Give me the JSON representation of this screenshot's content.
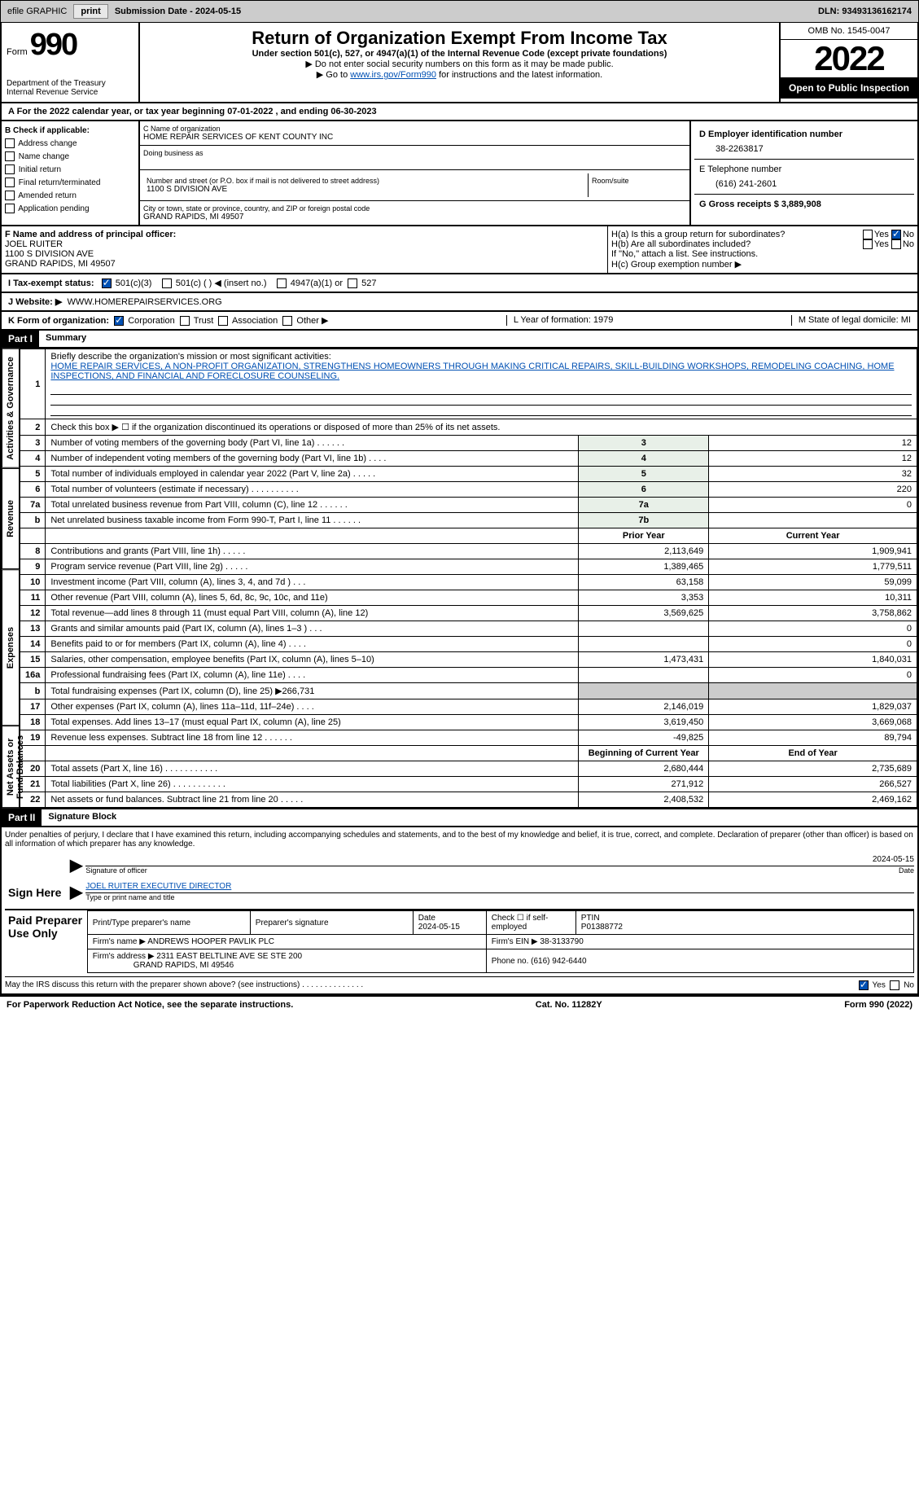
{
  "topbar": {
    "efile_label": "efile GRAPHIC",
    "print_btn": "print",
    "sub_date_label": "Submission Date - 2024-05-15",
    "dln_label": "DLN: 93493136162174"
  },
  "header": {
    "form_word": "Form",
    "form_number": "990",
    "dept": "Department of the Treasury\nInternal Revenue Service",
    "title": "Return of Organization Exempt From Income Tax",
    "subtitle": "Under section 501(c), 527, or 4947(a)(1) of the Internal Revenue Code (except private foundations)",
    "note1": "▶ Do not enter social security numbers on this form as it may be made public.",
    "note2_pre": "▶ Go to ",
    "note2_link": "www.irs.gov/Form990",
    "note2_post": " for instructions and the latest information.",
    "omb": "OMB No. 1545-0047",
    "year": "2022",
    "inspect": "Open to Public Inspection"
  },
  "row_a": "A For the 2022 calendar year, or tax year beginning 07-01-2022    , and ending 06-30-2023",
  "section_b": {
    "b_label": "B Check if applicable:",
    "b_items": [
      "Address change",
      "Name change",
      "Initial return",
      "Final return/terminated",
      "Amended return",
      "Application pending"
    ],
    "c_name_label": "C Name of organization",
    "c_name": "HOME REPAIR SERVICES OF KENT COUNTY INC",
    "c_dba_label": "Doing business as",
    "c_addr_label": "Number and street (or P.O. box if mail is not delivered to street address)",
    "c_addr": "1100 S DIVISION AVE",
    "c_room_label": "Room/suite",
    "c_city_label": "City or town, state or province, country, and ZIP or foreign postal code",
    "c_city": "GRAND RAPIDS, MI  49507",
    "d_ein_label": "D Employer identification number",
    "d_ein": "38-2263817",
    "e_tel_label": "E Telephone number",
    "e_tel": "(616) 241-2601",
    "g_gross_label": "G Gross receipts $ 3,889,908"
  },
  "section_f": {
    "f_label": "F Name and address of principal officer:",
    "f_name": "JOEL RUITER",
    "f_addr1": "1100 S DIVISION AVE",
    "f_addr2": "GRAND RAPIDS, MI  49507",
    "ha_label": "H(a)  Is this a group return for subordinates?",
    "hb_label": "H(b)  Are all subordinates included?",
    "hb_note": "If \"No,\" attach a list. See instructions.",
    "hc_label": "H(c)  Group exemption number ▶",
    "yes": "Yes",
    "no": "No"
  },
  "row_i": {
    "label": "I    Tax-exempt status:",
    "opt1": "501(c)(3)",
    "opt2": "501(c) (  ) ◀ (insert no.)",
    "opt3": "4947(a)(1) or",
    "opt4": "527"
  },
  "row_j": {
    "label": "J   Website: ▶",
    "value": "WWW.HOMEREPAIRSERVICES.ORG"
  },
  "row_k": {
    "label": "K Form of organization:",
    "opts": [
      "Corporation",
      "Trust",
      "Association",
      "Other ▶"
    ],
    "l_label": "L Year of formation: 1979",
    "m_label": "M State of legal domicile: MI"
  },
  "part1": {
    "part_label": "Part I",
    "title": "Summary",
    "line1_label": "Briefly describe the organization's mission or most significant activities:",
    "line1_text": "HOME REPAIR SERVICES, A NON-PROFIT ORGANIZATION, STRENGTHENS HOMEOWNERS THROUGH MAKING CRITICAL REPAIRS, SKILL-BUILDING WORKSHOPS, REMODELING COACHING, HOME INSPECTIONS, AND FINANCIAL AND FORECLOSURE COUNSELING.",
    "line2": "Check this box ▶ ☐ if the organization discontinued its operations or disposed of more than 25% of its net assets.",
    "vlabel_ag": "Activities & Governance",
    "vlabel_rev": "Revenue",
    "vlabel_exp": "Expenses",
    "vlabel_na": "Net Assets or Fund Balances",
    "prior_year": "Prior Year",
    "current_year": "Current Year",
    "beg_year": "Beginning of Current Year",
    "end_year": "End of Year",
    "lines_gov": [
      {
        "n": "3",
        "label": "Number of voting members of the governing body (Part VI, line 1a)  .    .    .    .    .    .",
        "box": "3",
        "val": "12"
      },
      {
        "n": "4",
        "label": "Number of independent voting members of the governing body (Part VI, line 1b)   .    .    .    .",
        "box": "4",
        "val": "12"
      },
      {
        "n": "5",
        "label": "Total number of individuals employed in calendar year 2022 (Part V, line 2a)   .    .    .    .    .",
        "box": "5",
        "val": "32"
      },
      {
        "n": "6",
        "label": "Total number of volunteers (estimate if necessary)    .    .    .    .    .    .    .    .    .    .",
        "box": "6",
        "val": "220"
      },
      {
        "n": "7a",
        "label": "Total unrelated business revenue from Part VIII, column (C), line 12   .    .    .    .    .    .",
        "box": "7a",
        "val": "0"
      },
      {
        "n": "b",
        "label": "Net unrelated business taxable income from Form 990-T, Part I, line 11   .    .    .    .    .    .",
        "box": "7b",
        "val": ""
      }
    ],
    "lines_rev": [
      {
        "n": "8",
        "label": "Contributions and grants (Part VIII, line 1h)   .    .    .    .    .",
        "py": "2,113,649",
        "cy": "1,909,941"
      },
      {
        "n": "9",
        "label": "Program service revenue (Part VIII, line 2g)   .    .    .    .    .",
        "py": "1,389,465",
        "cy": "1,779,511"
      },
      {
        "n": "10",
        "label": "Investment income (Part VIII, column (A), lines 3, 4, and 7d )    .    .    .",
        "py": "63,158",
        "cy": "59,099"
      },
      {
        "n": "11",
        "label": "Other revenue (Part VIII, column (A), lines 5, 6d, 8c, 9c, 10c, and 11e)",
        "py": "3,353",
        "cy": "10,311"
      },
      {
        "n": "12",
        "label": "Total revenue—add lines 8 through 11 (must equal Part VIII, column (A), line 12)",
        "py": "3,569,625",
        "cy": "3,758,862"
      }
    ],
    "lines_exp": [
      {
        "n": "13",
        "label": "Grants and similar amounts paid (Part IX, column (A), lines 1–3 )   .    .    .",
        "py": "",
        "cy": "0"
      },
      {
        "n": "14",
        "label": "Benefits paid to or for members (Part IX, column (A), line 4)   .    .    .    .",
        "py": "",
        "cy": "0"
      },
      {
        "n": "15",
        "label": "Salaries, other compensation, employee benefits (Part IX, column (A), lines 5–10)",
        "py": "1,473,431",
        "cy": "1,840,031"
      },
      {
        "n": "16a",
        "label": "Professional fundraising fees (Part IX, column (A), line 11e)   .    .    .    .",
        "py": "",
        "cy": "0"
      },
      {
        "n": "b",
        "label": "Total fundraising expenses (Part IX, column (D), line 25) ▶266,731",
        "py": "shade",
        "cy": "shade"
      },
      {
        "n": "17",
        "label": "Other expenses (Part IX, column (A), lines 11a–11d, 11f–24e)   .    .    .    .",
        "py": "2,146,019",
        "cy": "1,829,037"
      },
      {
        "n": "18",
        "label": "Total expenses. Add lines 13–17 (must equal Part IX, column (A), line 25)",
        "py": "3,619,450",
        "cy": "3,669,068"
      },
      {
        "n": "19",
        "label": "Revenue less expenses. Subtract line 18 from line 12   .    .    .    .    .    .",
        "py": "-49,825",
        "cy": "89,794"
      }
    ],
    "lines_na": [
      {
        "n": "20",
        "label": "Total assets (Part X, line 16)   .    .    .    .    .    .    .    .    .    .    .",
        "py": "2,680,444",
        "cy": "2,735,689"
      },
      {
        "n": "21",
        "label": "Total liabilities (Part X, line 26)   .    .    .    .    .    .    .    .    .    .    .",
        "py": "271,912",
        "cy": "266,527"
      },
      {
        "n": "22",
        "label": "Net assets or fund balances. Subtract line 21 from line 20   .    .    .    .    .",
        "py": "2,408,532",
        "cy": "2,469,162"
      }
    ]
  },
  "part2": {
    "part_label": "Part II",
    "title": "Signature Block",
    "penalty_text": "Under penalties of perjury, I declare that I have examined this return, including accompanying schedules and statements, and to the best of my knowledge and belief, it is true, correct, and complete. Declaration of preparer (other than officer) is based on all information of which preparer has any knowledge.",
    "sign_here": "Sign Here",
    "sig_officer_label": "Signature of officer",
    "sig_date": "2024-05-15",
    "sig_date_label": "Date",
    "sig_name": "JOEL RUITER  EXECUTIVE DIRECTOR",
    "sig_name_label": "Type or print name and title",
    "paid_label": "Paid Preparer Use Only",
    "prep_name_label": "Print/Type preparer's name",
    "prep_sig_label": "Preparer's signature",
    "prep_date_label": "Date",
    "prep_date": "2024-05-15",
    "prep_check_label": "Check ☐ if self-employed",
    "ptin_label": "PTIN",
    "ptin": "P01388772",
    "firm_name_label": "Firm's name      ▶",
    "firm_name": "ANDREWS HOOPER PAVLIK PLC",
    "firm_ein_label": "Firm's EIN ▶ 38-3133790",
    "firm_addr_label": "Firm's address ▶",
    "firm_addr1": "2311 EAST BELTLINE AVE SE STE 200",
    "firm_addr2": "GRAND RAPIDS, MI  49546",
    "firm_phone_label": "Phone no. (616) 942-6440",
    "discuss_label": "May the IRS discuss this return with the preparer shown above? (see instructions)    .    .    .    .    .    .    .    .    .    .    .    .    .    .",
    "yes": "Yes",
    "no": "No"
  },
  "footer": {
    "left": "For Paperwork Reduction Act Notice, see the separate instructions.",
    "center": "Cat. No. 11282Y",
    "right": "Form 990 (2022)"
  }
}
